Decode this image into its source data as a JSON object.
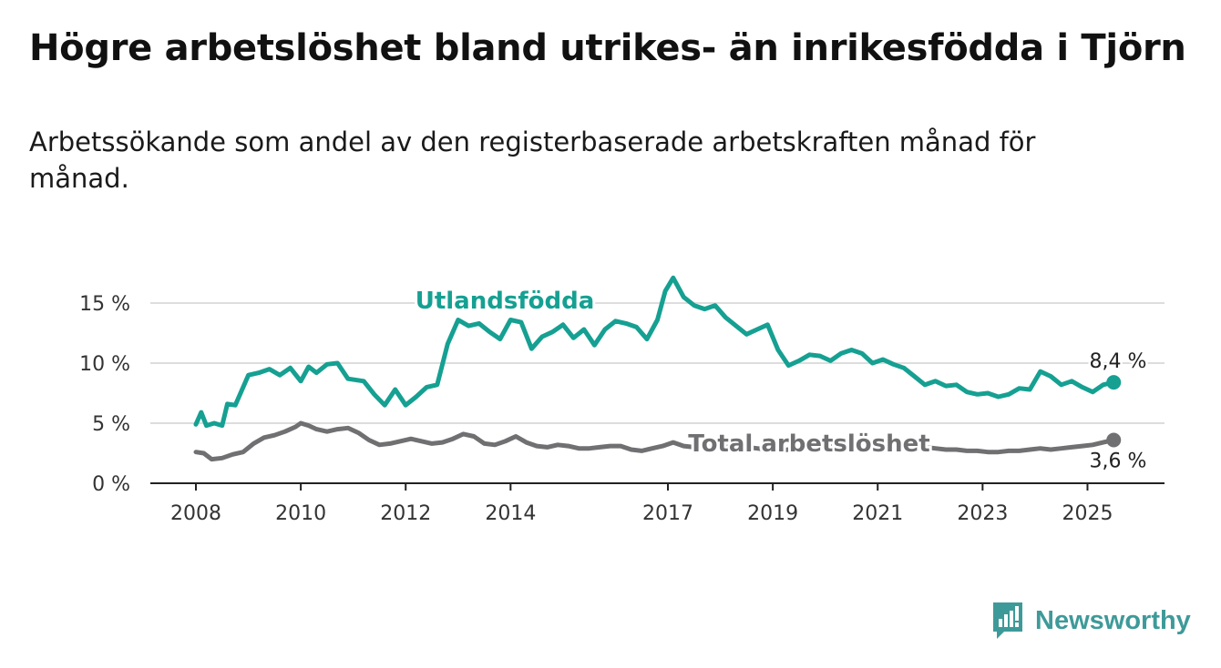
{
  "title": "Högre arbetslöshet bland utrikes- än inrikesfödda i Tjörn",
  "subtitle": "Arbetssökande som andel av den registerbaserade arbetskraften månad för månad.",
  "brand": {
    "name": "Newsworthy",
    "icon": "newsworthy-bar-chart-icon",
    "color": "#3e9a99"
  },
  "chart_data": {
    "type": "line",
    "xlim": [
      2008,
      2025.6
    ],
    "ylim": [
      0,
      17.5
    ],
    "y_ticks": [
      0,
      5,
      10,
      15
    ],
    "y_tick_labels": [
      "0 %",
      "5 %",
      "10 %",
      "15 %"
    ],
    "x_ticks": [
      2008,
      2010,
      2012,
      2014,
      2017,
      2019,
      2021,
      2023,
      2025
    ],
    "x_tick_labels": [
      "2008",
      "2010",
      "2012",
      "2014",
      "2017",
      "2019",
      "2021",
      "2023",
      "2025"
    ],
    "grid": true,
    "series": [
      {
        "name": "Utlandsfödda",
        "color": "#15a092",
        "end_label": "8,4 %",
        "x": [
          2008.0,
          2008.1,
          2008.2,
          2008.35,
          2008.5,
          2008.6,
          2008.75,
          2009.0,
          2009.2,
          2009.4,
          2009.6,
          2009.8,
          2010.0,
          2010.15,
          2010.3,
          2010.5,
          2010.7,
          2010.9,
          2011.2,
          2011.4,
          2011.6,
          2011.8,
          2012.0,
          2012.2,
          2012.4,
          2012.6,
          2012.8,
          2013.0,
          2013.2,
          2013.4,
          2013.6,
          2013.8,
          2014.0,
          2014.2,
          2014.4,
          2014.6,
          2014.8,
          2015.0,
          2015.2,
          2015.4,
          2015.6,
          2015.8,
          2016.0,
          2016.2,
          2016.4,
          2016.6,
          2016.8,
          2016.95,
          2017.1,
          2017.3,
          2017.5,
          2017.7,
          2017.9,
          2018.1,
          2018.3,
          2018.5,
          2018.7,
          2018.9,
          2019.1,
          2019.3,
          2019.5,
          2019.7,
          2019.9,
          2020.1,
          2020.3,
          2020.5,
          2020.7,
          2020.9,
          2021.1,
          2021.3,
          2021.5,
          2021.7,
          2021.9,
          2022.1,
          2022.3,
          2022.5,
          2022.7,
          2022.9,
          2023.1,
          2023.3,
          2023.5,
          2023.7,
          2023.9,
          2024.1,
          2024.3,
          2024.5,
          2024.7,
          2024.9,
          2025.1,
          2025.3,
          2025.5
        ],
        "y": [
          4.9,
          5.9,
          4.8,
          5.0,
          4.8,
          6.6,
          6.5,
          9.0,
          9.2,
          9.5,
          9.0,
          9.6,
          8.5,
          9.7,
          9.2,
          9.9,
          10.0,
          8.7,
          8.5,
          7.4,
          6.5,
          7.8,
          6.5,
          7.2,
          8.0,
          8.2,
          11.6,
          13.6,
          13.1,
          13.3,
          12.6,
          12.0,
          13.6,
          13.4,
          11.2,
          12.2,
          12.6,
          13.2,
          12.1,
          12.8,
          11.5,
          12.8,
          13.5,
          13.3,
          13.0,
          12.0,
          13.6,
          16.0,
          17.1,
          15.5,
          14.8,
          14.5,
          14.8,
          13.8,
          13.1,
          12.4,
          12.8,
          13.2,
          11.1,
          9.8,
          10.2,
          10.7,
          10.6,
          10.2,
          10.8,
          11.1,
          10.8,
          10.0,
          10.3,
          9.9,
          9.6,
          8.9,
          8.2,
          8.5,
          8.1,
          8.2,
          7.6,
          7.4,
          7.5,
          7.2,
          7.4,
          7.9,
          7.8,
          9.3,
          8.9,
          8.2,
          8.5,
          8.0,
          7.6,
          8.2,
          8.4
        ]
      },
      {
        "name": "Total arbetslöshet",
        "color": "#707073",
        "end_label": "3,6 %",
        "x": [
          2008.0,
          2008.15,
          2008.3,
          2008.5,
          2008.7,
          2008.9,
          2009.1,
          2009.3,
          2009.5,
          2009.7,
          2009.9,
          2010.0,
          2010.15,
          2010.3,
          2010.5,
          2010.7,
          2010.9,
          2011.1,
          2011.3,
          2011.5,
          2011.7,
          2011.9,
          2012.1,
          2012.3,
          2012.5,
          2012.7,
          2012.9,
          2013.1,
          2013.3,
          2013.5,
          2013.7,
          2013.9,
          2014.1,
          2014.3,
          2014.5,
          2014.7,
          2014.9,
          2015.1,
          2015.3,
          2015.5,
          2015.7,
          2015.9,
          2016.1,
          2016.3,
          2016.5,
          2016.7,
          2016.9,
          2017.1,
          2017.3,
          2017.5,
          2017.7,
          2017.9,
          2018.1,
          2018.3,
          2018.5,
          2018.7,
          2018.9,
          2019.1,
          2019.3,
          2019.5,
          2019.7,
          2019.9,
          2020.1,
          2020.3,
          2020.5,
          2020.7,
          2020.9,
          2021.1,
          2021.3,
          2021.5,
          2021.7,
          2021.9,
          2022.1,
          2022.3,
          2022.5,
          2022.7,
          2022.9,
          2023.1,
          2023.3,
          2023.5,
          2023.7,
          2023.9,
          2024.1,
          2024.3,
          2024.5,
          2024.7,
          2024.9,
          2025.1,
          2025.3,
          2025.5
        ],
        "y": [
          2.6,
          2.5,
          2.0,
          2.1,
          2.4,
          2.6,
          3.3,
          3.8,
          4.0,
          4.3,
          4.7,
          5.0,
          4.8,
          4.5,
          4.3,
          4.5,
          4.6,
          4.2,
          3.6,
          3.2,
          3.3,
          3.5,
          3.7,
          3.5,
          3.3,
          3.4,
          3.7,
          4.1,
          3.9,
          3.3,
          3.2,
          3.5,
          3.9,
          3.4,
          3.1,
          3.0,
          3.2,
          3.1,
          2.9,
          2.9,
          3.0,
          3.1,
          3.1,
          2.8,
          2.7,
          2.9,
          3.1,
          3.4,
          3.1,
          3.0,
          3.1,
          3.0,
          3.0,
          3.1,
          3.0,
          2.9,
          2.8,
          2.7,
          2.8,
          2.9,
          3.0,
          3.1,
          3.2,
          3.1,
          3.3,
          3.4,
          3.2,
          3.3,
          3.2,
          3.1,
          3.0,
          3.0,
          2.9,
          2.8,
          2.8,
          2.7,
          2.7,
          2.6,
          2.6,
          2.7,
          2.7,
          2.8,
          2.9,
          2.8,
          2.9,
          3.0,
          3.1,
          3.2,
          3.4,
          3.6
        ]
      }
    ]
  }
}
